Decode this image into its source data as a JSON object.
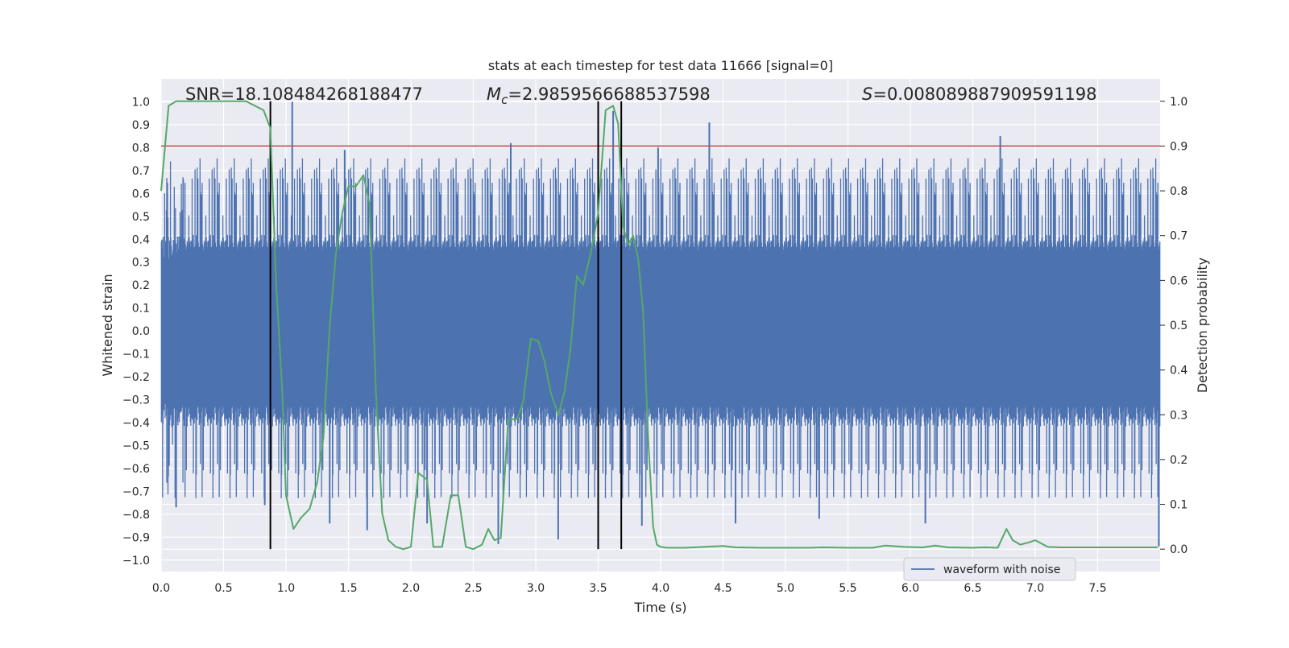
{
  "chart_data": {
    "type": "line",
    "title": "stats at each timestep for test data 11666 [signal=0]",
    "xlabel": "Time (s)",
    "ylabel": "Whitened strain",
    "ylabel_right": "Detection probability",
    "xlim": [
      0.0,
      8.0
    ],
    "ylim": [
      -1.05,
      1.1
    ],
    "ylim_right": [
      -0.05,
      1.05
    ],
    "x_ticks": [
      0.0,
      0.5,
      1.0,
      1.5,
      2.0,
      2.5,
      3.0,
      3.5,
      4.0,
      4.5,
      5.0,
      5.5,
      6.0,
      6.5,
      7.0,
      7.5
    ],
    "x_tick_labels": [
      "0.0",
      "0.5",
      "1.0",
      "1.5",
      "2.0",
      "2.5",
      "3.0",
      "3.5",
      "4.0",
      "4.5",
      "5.0",
      "5.5",
      "6.0",
      "6.5",
      "7.0",
      "7.5"
    ],
    "y_ticks": [
      1.0,
      0.9,
      0.8,
      0.7,
      0.6,
      0.5,
      0.4,
      0.3,
      0.2,
      0.1,
      0.0,
      -0.1,
      -0.2,
      -0.3,
      -0.4,
      -0.5,
      -0.6,
      -0.7,
      -0.8,
      -0.9,
      -1.0
    ],
    "y_tick_labels": [
      "1.0",
      "0.9",
      "0.8",
      "0.7",
      "0.6",
      "0.5",
      "0.4",
      "0.3",
      "0.2",
      "0.1",
      "0.0",
      "−0.1",
      "−0.2",
      "−0.3",
      "−0.4",
      "−0.5",
      "−0.6",
      "−0.7",
      "−0.8",
      "−0.9",
      "−1.0"
    ],
    "y_right_ticks": [
      1.0,
      0.9,
      0.8,
      0.7,
      0.6,
      0.5,
      0.4,
      0.3,
      0.2,
      0.1,
      0.0
    ],
    "y_right_tick_labels": [
      "1.0",
      "0.9",
      "0.8",
      "0.7",
      "0.6",
      "0.5",
      "0.4",
      "0.3",
      "0.2",
      "0.1",
      "0.0"
    ],
    "annotations": {
      "snr": "SNR=18.108484268188477",
      "mc_prefix": "M",
      "mc_sub": "c",
      "mc_value": "=2.9859566688537598",
      "s_prefix": "S",
      "s_value": "=0.008089887909591198"
    },
    "grid": true,
    "legend": {
      "placement": "lower-right",
      "entries": [
        "waveform with noise"
      ]
    },
    "colors": {
      "background": "#eaeaf2",
      "waveform": "#4c72b0",
      "probability": "#55a868",
      "threshold": "#c44e52",
      "marker": "#000000",
      "grid": "#ffffff"
    },
    "waveform": {
      "name": "waveform with noise",
      "typical_envelope": 0.35,
      "spikes": [
        {
          "x": 1.05,
          "y": 1.0
        },
        {
          "x": 1.47,
          "y": 0.79
        },
        {
          "x": 2.8,
          "y": 0.82
        },
        {
          "x": 3.62,
          "y": 0.96
        },
        {
          "x": 3.98,
          "y": 0.8
        },
        {
          "x": 4.39,
          "y": 0.91
        },
        {
          "x": 6.72,
          "y": 0.85
        },
        {
          "x": 0.12,
          "y": -0.77
        },
        {
          "x": 0.83,
          "y": -0.76
        },
        {
          "x": 1.35,
          "y": -0.84
        },
        {
          "x": 1.65,
          "y": -0.87
        },
        {
          "x": 2.13,
          "y": -0.84
        },
        {
          "x": 2.7,
          "y": -0.93
        },
        {
          "x": 3.18,
          "y": -0.91
        },
        {
          "x": 3.85,
          "y": -0.85
        },
        {
          "x": 4.6,
          "y": -0.84
        },
        {
          "x": 5.27,
          "y": -0.82
        },
        {
          "x": 6.12,
          "y": -0.84
        },
        {
          "x": 7.99,
          "y": -0.94
        }
      ]
    },
    "threshold_right": 0.9,
    "markers_x": [
      0.875,
      3.5,
      3.685
    ],
    "probability": {
      "name": "Detection probability",
      "x": [
        0.0,
        0.06,
        0.12,
        0.2,
        0.3,
        0.4,
        0.5,
        0.6,
        0.68,
        0.75,
        0.82,
        0.875,
        0.92,
        0.97,
        1.0,
        1.06,
        1.12,
        1.19,
        1.25,
        1.3,
        1.35,
        1.4,
        1.45,
        1.5,
        1.56,
        1.62,
        1.67,
        1.72,
        1.77,
        1.82,
        1.88,
        1.94,
        2.0,
        2.06,
        2.13,
        2.18,
        2.25,
        2.32,
        2.38,
        2.44,
        2.5,
        2.57,
        2.62,
        2.67,
        2.72,
        2.78,
        2.85,
        2.9,
        2.96,
        3.02,
        3.07,
        3.12,
        3.18,
        3.23,
        3.28,
        3.33,
        3.38,
        3.44,
        3.5,
        3.56,
        3.62,
        3.66,
        3.7,
        3.74,
        3.78,
        3.82,
        3.86,
        3.9,
        3.94,
        3.97,
        4.0,
        4.05,
        4.2,
        4.35,
        4.5,
        4.6,
        4.8,
        5.0,
        5.2,
        5.3,
        5.5,
        5.7,
        5.8,
        5.95,
        6.1,
        6.2,
        6.3,
        6.5,
        6.6,
        6.7,
        6.77,
        6.82,
        6.88,
        6.95,
        7.0,
        7.1,
        7.2,
        7.4,
        7.6,
        7.8,
        7.98
      ],
      "y": [
        0.8,
        0.99,
        1.0,
        1.0,
        1.0,
        1.0,
        1.0,
        1.0,
        1.0,
        0.99,
        0.98,
        0.94,
        0.6,
        0.35,
        0.12,
        0.045,
        0.07,
        0.09,
        0.15,
        0.25,
        0.5,
        0.66,
        0.75,
        0.81,
        0.81,
        0.835,
        0.77,
        0.35,
        0.08,
        0.02,
        0.005,
        0.0,
        0.005,
        0.17,
        0.155,
        0.005,
        0.005,
        0.12,
        0.12,
        0.005,
        0.0,
        0.01,
        0.045,
        0.02,
        0.025,
        0.29,
        0.29,
        0.33,
        0.47,
        0.465,
        0.42,
        0.35,
        0.3,
        0.35,
        0.45,
        0.61,
        0.59,
        0.66,
        0.75,
        0.98,
        0.99,
        0.95,
        0.72,
        0.68,
        0.7,
        0.65,
        0.53,
        0.25,
        0.05,
        0.01,
        0.005,
        0.003,
        0.003,
        0.005,
        0.007,
        0.004,
        0.003,
        0.003,
        0.003,
        0.004,
        0.003,
        0.003,
        0.008,
        0.005,
        0.004,
        0.008,
        0.004,
        0.003,
        0.004,
        0.003,
        0.045,
        0.02,
        0.01,
        0.015,
        0.02,
        0.005,
        0.004,
        0.004,
        0.004,
        0.004,
        0.004
      ]
    }
  }
}
